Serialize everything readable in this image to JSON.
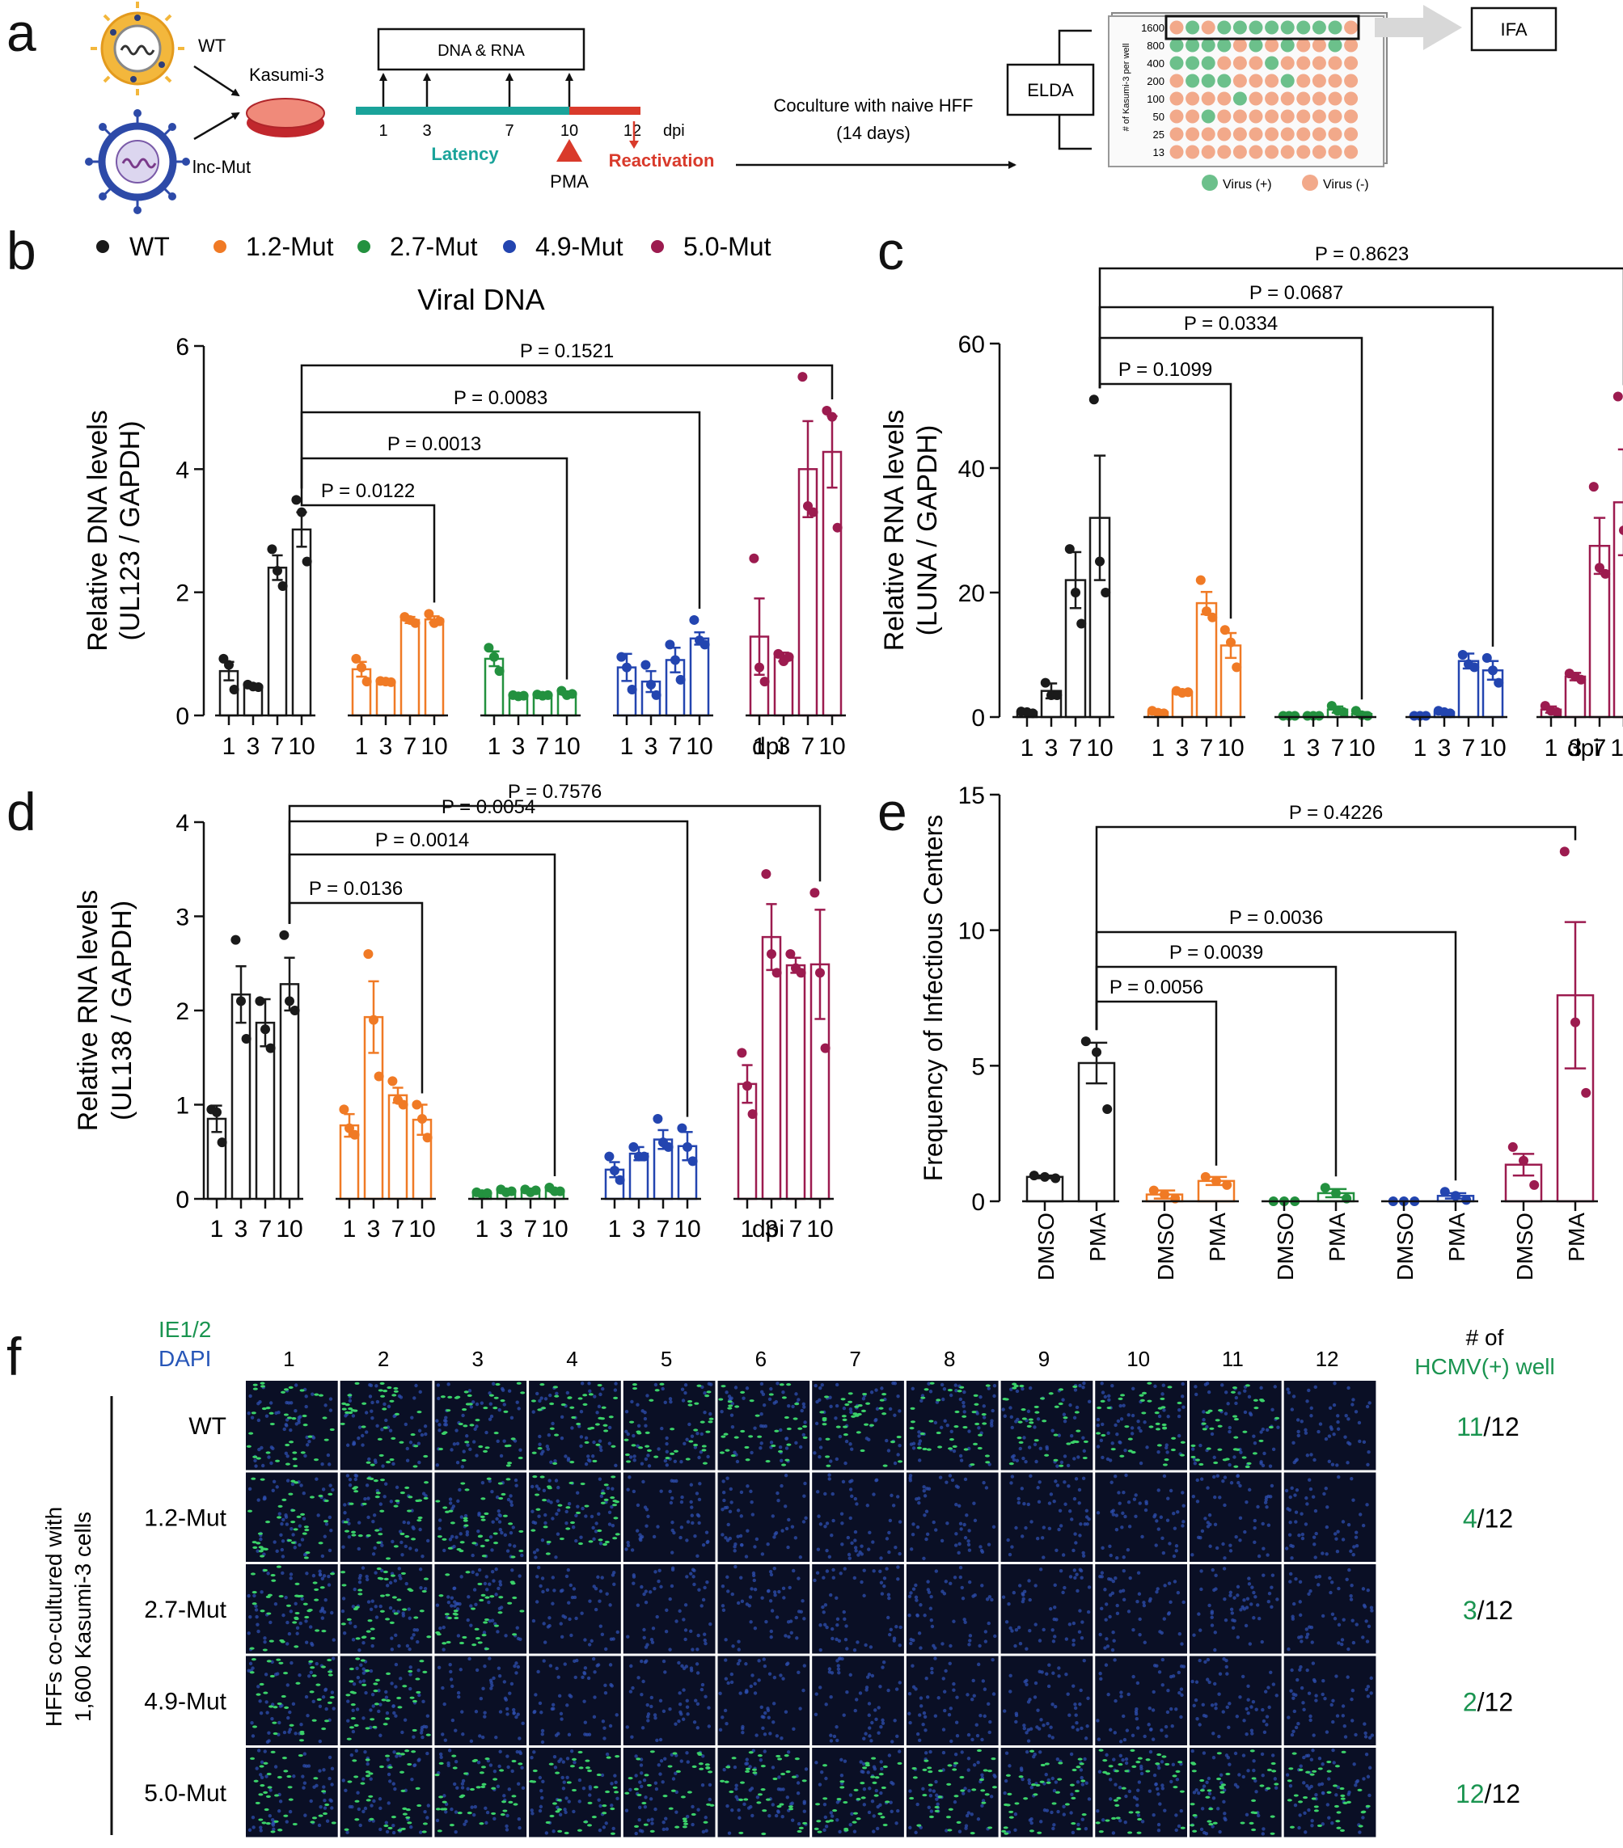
{
  "panel_labels": [
    "a",
    "b",
    "c",
    "d",
    "e",
    "f"
  ],
  "colors": {
    "WT": "#1a1a1a",
    "1.2-Mut": "#f07a25",
    "2.7-Mut": "#23913f",
    "4.9-Mut": "#2345b0",
    "5.0-Mut": "#9c1b4f",
    "teal": "#1aa39a",
    "red": "#d93a2b",
    "pos": "#6cc08b",
    "neg": "#f2a98a",
    "hcmv_green": "#1a9450",
    "dapi_blue": "#2756b8"
  },
  "schematic": {
    "wt_label": "WT",
    "mut_label": "lnc-Mut",
    "cell_label": "Kasumi-3",
    "dna_rna_box": "DNA & RNA",
    "timeline_ticks": [
      "1",
      "3",
      "7",
      "10",
      "12"
    ],
    "dpi": "dpi",
    "latency": "Latency",
    "reactivation": "Reactivation",
    "pma": "PMA",
    "coculture_line1": "Coculture with naive HFF",
    "coculture_line2": "(14 days)",
    "elda": "ELDA",
    "ifa": "IFA",
    "plate_ylabel": "# of Kasumi-3 per well",
    "plate_rows": [
      "1600",
      "800",
      "400",
      "200",
      "100",
      "50",
      "25",
      "13"
    ],
    "plate_grid": [
      "010111111110",
      "111101010010",
      "111000100000",
      "011100010000",
      "000010000000",
      "001000000000",
      "000000000000",
      "000000000000"
    ],
    "legend_pos": "Virus (+)",
    "legend_neg": "Virus (-)"
  },
  "legend": [
    "WT",
    "1.2-Mut",
    "2.7-Mut",
    "4.9-Mut",
    "5.0-Mut"
  ],
  "chart_data": [
    {
      "panel": "b",
      "type": "bar",
      "title": "Viral DNA",
      "ylabel_line1": "Relative DNA levels",
      "ylabel_line2": "(UL123 / GAPDH)",
      "ylim": [
        0,
        6
      ],
      "yticks": [
        "0",
        "2",
        "4",
        "6"
      ],
      "ytick_values": [
        0,
        2,
        4,
        6
      ],
      "categories": [
        "1",
        "3",
        "7",
        "10"
      ],
      "xlabel": "dpi",
      "series": [
        {
          "name": "WT",
          "values": [
            0.72,
            0.48,
            2.4,
            3.02
          ],
          "sem": [
            0.15,
            0.03,
            0.2,
            0.28
          ],
          "points": [
            [
              0.92,
              0.82,
              0.42
            ],
            [
              0.5,
              0.47,
              0.46
            ],
            [
              2.7,
              2.35,
              2.1
            ],
            [
              3.5,
              3.3,
              2.5
            ]
          ]
        },
        {
          "name": "1.2-Mut",
          "values": [
            0.75,
            0.55,
            1.55,
            1.56
          ],
          "sem": [
            0.12,
            0.02,
            0.05,
            0.05
          ],
          "points": [
            [
              0.92,
              0.78,
              0.55
            ],
            [
              0.56,
              0.55,
              0.54
            ],
            [
              1.6,
              1.55,
              1.5
            ],
            [
              1.65,
              1.5,
              1.53
            ]
          ]
        },
        {
          "name": "2.7-Mut",
          "values": [
            0.92,
            0.32,
            0.33,
            0.36
          ],
          "sem": [
            0.12,
            0.02,
            0.02,
            0.03
          ],
          "points": [
            [
              1.1,
              0.95,
              0.72
            ],
            [
              0.33,
              0.31,
              0.32
            ],
            [
              0.34,
              0.32,
              0.33
            ],
            [
              0.4,
              0.33,
              0.35
            ]
          ]
        },
        {
          "name": "4.9-Mut",
          "values": [
            0.78,
            0.55,
            0.9,
            1.25
          ],
          "sem": [
            0.22,
            0.17,
            0.2,
            0.1
          ],
          "points": [
            [
              0.95,
              0.78,
              0.42
            ],
            [
              0.82,
              0.5,
              0.33
            ],
            [
              1.15,
              0.9,
              0.58
            ],
            [
              1.55,
              1.22,
              1.15
            ]
          ]
        },
        {
          "name": "5.0-Mut",
          "values": [
            1.28,
            0.95,
            4.0,
            4.28
          ],
          "sem": [
            0.62,
            0.07,
            0.78,
            0.58
          ],
          "points": [
            [
              2.55,
              0.78,
              0.55
            ],
            [
              1.0,
              0.88,
              0.95
            ],
            [
              5.5,
              3.4,
              3.3
            ],
            [
              4.95,
              4.85,
              3.05
            ]
          ]
        }
      ],
      "comparisons": [
        {
          "label": "P = 0.0122"
        },
        {
          "label": "P = 0.0013"
        },
        {
          "label": "P = 0.0083"
        },
        {
          "label": "P = 0.1521"
        }
      ]
    },
    {
      "panel": "c",
      "type": "bar",
      "title": "",
      "ylabel_line1": "Relative RNA levels",
      "ylabel_line2": "(LUNA / GAPDH)",
      "ylim": [
        0,
        60
      ],
      "yticks": [
        "0",
        "20",
        "40",
        "60"
      ],
      "ytick_values": [
        0,
        20,
        40,
        60
      ],
      "categories": [
        "1",
        "3",
        "7",
        "10"
      ],
      "xlabel": "dpi",
      "series": [
        {
          "name": "WT",
          "values": [
            0.8,
            4.2,
            22,
            32
          ],
          "sem": [
            0.2,
            1.2,
            4.5,
            10
          ],
          "points": [
            [
              0.9,
              0.8,
              0.6
            ],
            [
              5.5,
              3.5,
              3.5
            ],
            [
              27,
              20,
              15
            ],
            [
              51,
              25,
              20
            ]
          ]
        },
        {
          "name": "1.2-Mut",
          "values": [
            0.8,
            4.0,
            18.3,
            11.5
          ],
          "sem": [
            0.3,
            0.3,
            1.8,
            2
          ],
          "points": [
            [
              1.0,
              0.7,
              0.6
            ],
            [
              4.2,
              3.9,
              4.0
            ],
            [
              22,
              17,
              16
            ],
            [
              14,
              12,
              8
            ]
          ]
        },
        {
          "name": "2.7-Mut",
          "values": [
            0.2,
            0.2,
            1.2,
            0.5
          ],
          "sem": [
            0.05,
            0.05,
            0.5,
            0.3
          ],
          "points": [
            [
              0.2,
              0.2,
              0.2
            ],
            [
              0.2,
              0.2,
              0.2
            ],
            [
              1.8,
              1.0,
              0.8
            ],
            [
              1.0,
              0.3,
              0.2
            ]
          ]
        },
        {
          "name": "4.9-Mut",
          "values": [
            0.2,
            0.8,
            9,
            7.5
          ],
          "sem": [
            0.05,
            0.2,
            1.2,
            1.5
          ],
          "points": [
            [
              0.2,
              0.2,
              0.2
            ],
            [
              1.0,
              0.8,
              0.6
            ],
            [
              10,
              8.5,
              8
            ],
            [
              9.5,
              7.5,
              5.5
            ]
          ]
        },
        {
          "name": "5.0-Mut",
          "values": [
            1.2,
            6.5,
            27.5,
            34.5
          ],
          "sem": [
            0.5,
            0.6,
            4.5,
            8.5
          ],
          "points": [
            [
              1.8,
              1.0,
              0.8
            ],
            [
              7,
              6.5,
              6
            ],
            [
              37,
              24,
              23
            ],
            [
              51.5,
              30,
              25
            ]
          ]
        }
      ],
      "comparisons": [
        {
          "label": "P = 0.1099"
        },
        {
          "label": "P = 0.0334"
        },
        {
          "label": "P = 0.0687"
        },
        {
          "label": "P = 0.8623"
        }
      ]
    },
    {
      "panel": "d",
      "type": "bar",
      "title": "",
      "ylabel_line1": "Relative RNA levels",
      "ylabel_line2": "(UL138 / GAPDH)",
      "ylim": [
        0,
        4
      ],
      "yticks": [
        "0",
        "1",
        "2",
        "3",
        "4"
      ],
      "ytick_values": [
        0,
        1,
        2,
        3,
        4
      ],
      "categories": [
        "1",
        "3",
        "7",
        "10"
      ],
      "xlabel": "dpi",
      "series": [
        {
          "name": "WT",
          "values": [
            0.85,
            2.17,
            1.87,
            2.28
          ],
          "sem": [
            0.14,
            0.3,
            0.25,
            0.28
          ],
          "points": [
            [
              0.95,
              0.92,
              0.6
            ],
            [
              2.75,
              2.1,
              1.7
            ],
            [
              2.1,
              1.8,
              1.6
            ],
            [
              2.8,
              2.1,
              2.0
            ]
          ]
        },
        {
          "name": "1.2-Mut",
          "values": [
            0.78,
            1.93,
            1.1,
            0.84
          ],
          "sem": [
            0.12,
            0.38,
            0.08,
            0.16
          ],
          "points": [
            [
              0.95,
              0.75,
              0.68
            ],
            [
              2.6,
              1.9,
              1.3
            ],
            [
              1.25,
              1.05,
              1.0
            ],
            [
              1.0,
              0.85,
              0.65
            ]
          ]
        },
        {
          "name": "2.7-Mut",
          "values": [
            0.06,
            0.08,
            0.08,
            0.09
          ],
          "sem": [
            0.02,
            0.02,
            0.02,
            0.02
          ],
          "points": [
            [
              0.07,
              0.05,
              0.06
            ],
            [
              0.1,
              0.07,
              0.08
            ],
            [
              0.1,
              0.07,
              0.09
            ],
            [
              0.12,
              0.08,
              0.08
            ]
          ]
        },
        {
          "name": "4.9-Mut",
          "values": [
            0.31,
            0.48,
            0.63,
            0.56
          ],
          "sem": [
            0.08,
            0.07,
            0.1,
            0.15
          ],
          "points": [
            [
              0.45,
              0.3,
              0.2
            ],
            [
              0.55,
              0.45,
              0.45
            ],
            [
              0.85,
              0.6,
              0.55
            ],
            [
              0.75,
              0.55,
              0.4
            ]
          ]
        },
        {
          "name": "5.0-Mut",
          "values": [
            1.22,
            2.78,
            2.48,
            2.49
          ],
          "sem": [
            0.2,
            0.35,
            0.08,
            0.58
          ],
          "points": [
            [
              1.55,
              1.2,
              0.9
            ],
            [
              3.45,
              2.6,
              2.4
            ],
            [
              2.6,
              2.45,
              2.4
            ],
            [
              3.25,
              2.4,
              1.6
            ]
          ]
        }
      ],
      "comparisons": [
        {
          "label": "P = 0.0136"
        },
        {
          "label": "P = 0.0014"
        },
        {
          "label": "P = 0.0054"
        },
        {
          "label": "P = 0.7576"
        }
      ]
    },
    {
      "panel": "e",
      "type": "bar",
      "title": "",
      "ylabel_line1": "Frequency of Infectious Centers",
      "ylabel_line2": "",
      "ylim": [
        0,
        15
      ],
      "yticks": [
        "0",
        "5",
        "10",
        "15"
      ],
      "ytick_values": [
        0,
        5,
        10,
        15
      ],
      "categories": [
        "DMSO",
        "PMA"
      ],
      "xlabel": "",
      "series": [
        {
          "name": "WT",
          "values": [
            0.9,
            5.1
          ],
          "sem": [
            0.05,
            0.75
          ],
          "points": [
            [
              0.95,
              0.9,
              0.85
            ],
            [
              5.9,
              5.5,
              3.4
            ]
          ]
        },
        {
          "name": "1.2-Mut",
          "values": [
            0.25,
            0.75
          ],
          "sem": [
            0.15,
            0.15
          ],
          "points": [
            [
              0.4,
              0.25,
              0.1
            ],
            [
              0.9,
              0.75,
              0.6
            ]
          ]
        },
        {
          "name": "2.7-Mut",
          "values": [
            0.0,
            0.3
          ],
          "sem": [
            0.0,
            0.15
          ],
          "points": [
            [
              0.0,
              0.0,
              0.0
            ],
            [
              0.5,
              0.3,
              0.1
            ]
          ]
        },
        {
          "name": "4.9-Mut",
          "values": [
            0.0,
            0.2
          ],
          "sem": [
            0.0,
            0.1
          ],
          "points": [
            [
              0.0,
              0.0,
              0.0
            ],
            [
              0.35,
              0.2,
              0.05
            ]
          ]
        },
        {
          "name": "5.0-Mut",
          "values": [
            1.35,
            7.6
          ],
          "sem": [
            0.4,
            2.7
          ],
          "points": [
            [
              2.0,
              1.5,
              0.6
            ],
            [
              12.9,
              6.6,
              4.0
            ]
          ]
        }
      ],
      "comparisons": [
        {
          "label": "P = 0.0056"
        },
        {
          "label": "P = 0.0039"
        },
        {
          "label": "P = 0.0036"
        },
        {
          "label": "P = 0.4226"
        }
      ]
    }
  ],
  "panel_f": {
    "stain1": "IE1/2",
    "stain2": "DAPI",
    "columns": [
      "1",
      "2",
      "3",
      "4",
      "5",
      "6",
      "7",
      "8",
      "9",
      "10",
      "11",
      "12"
    ],
    "side_label_line1": "HFFs co-cultured with",
    "side_label_line2": "1,600 Kasumi-3 cells",
    "header_line1": "# of",
    "header_line2": "HCMV(+) well",
    "rows": [
      {
        "name": "WT",
        "positive": "11",
        "total": "/12",
        "pos_wells": [
          1,
          1,
          1,
          1,
          1,
          1,
          1,
          1,
          1,
          1,
          1,
          0
        ]
      },
      {
        "name": "1.2-Mut",
        "positive": "4",
        "total": "/12",
        "pos_wells": [
          1,
          1,
          1,
          1,
          0,
          0,
          0,
          0,
          0,
          0,
          0,
          0
        ]
      },
      {
        "name": "2.7-Mut",
        "positive": "3",
        "total": "/12",
        "pos_wells": [
          1,
          1,
          1,
          0,
          0,
          0,
          0,
          0,
          0,
          0,
          0,
          0
        ]
      },
      {
        "name": "4.9-Mut",
        "positive": "2",
        "total": "/12",
        "pos_wells": [
          1,
          1,
          0,
          0,
          0,
          0,
          0,
          0,
          0,
          0,
          0,
          0
        ]
      },
      {
        "name": "5.0-Mut",
        "positive": "12",
        "total": "/12",
        "pos_wells": [
          1,
          1,
          1,
          1,
          1,
          1,
          1,
          1,
          1,
          1,
          1,
          1
        ]
      }
    ]
  }
}
